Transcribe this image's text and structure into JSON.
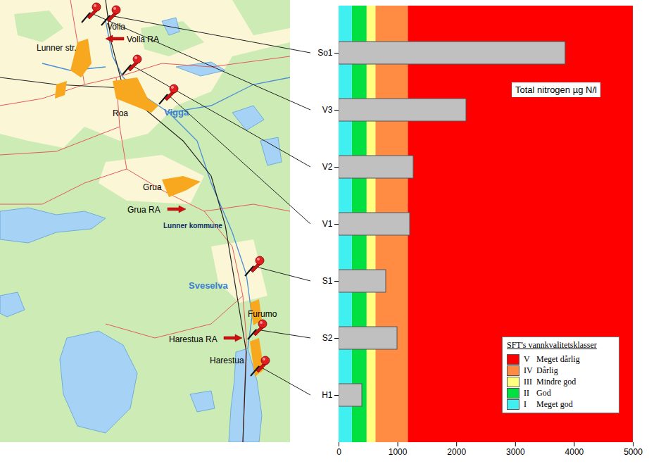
{
  "chart_data": {
    "type": "bar",
    "orientation": "horizontal",
    "categories": [
      "So1",
      "V3",
      "V2",
      "V1",
      "S1",
      "S2",
      "H1"
    ],
    "values": [
      3850,
      2165,
      1268,
      1208,
      801,
      993,
      395
    ],
    "color": "#c0c0c0",
    "xlim": [
      0,
      5000
    ],
    "xticks": [
      0,
      1000,
      2000,
      3000,
      4000,
      5000
    ],
    "annotation": "Total nitrogen  µg N/l",
    "classes": {
      "title": "SFT's vannkvalitetsklasser",
      "items": [
        {
          "class": "V",
          "name": "Meget dårlig",
          "color": "#ff0000",
          "from": 1175,
          "to": 5000
        },
        {
          "class": "IV",
          "name": "Dårlig",
          "color": "#ff8c42",
          "from": 625,
          "to": 1175
        },
        {
          "class": "III",
          "name": "Mindre god",
          "color": "#ffff80",
          "from": 475,
          "to": 625
        },
        {
          "class": "II",
          "name": "God",
          "color": "#00e040",
          "from": 225,
          "to": 475
        },
        {
          "class": "I",
          "name": "Meget god",
          "color": "#40f0f0",
          "from": 0,
          "to": 225
        }
      ]
    }
  },
  "map": {
    "labels": [
      "Volla",
      "Volla RA",
      "Lunner str.",
      "Roa",
      "Vigga",
      "Grua",
      "Grua RA",
      "Lunner kommune",
      "Sveselva",
      "Furumo",
      "Harestua RA",
      "Harestua"
    ]
  }
}
